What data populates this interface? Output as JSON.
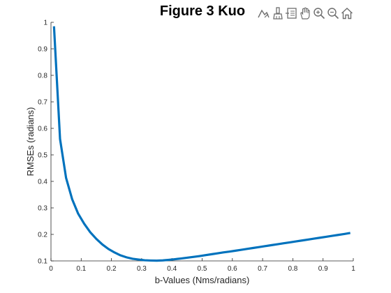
{
  "toolbar": {
    "icons": [
      "export-icon",
      "brush-icon",
      "data-tips-icon",
      "pan-icon",
      "zoom-in-icon",
      "zoom-out-icon",
      "home-icon"
    ]
  },
  "chart_data": {
    "type": "line",
    "title": "Figure 3 Kuo",
    "xlabel": "b-Values (Nms/radians)",
    "ylabel": "RMSEs (radians)",
    "xlim": [
      0,
      1
    ],
    "ylim": [
      0.1,
      1
    ],
    "grid": false,
    "box": false,
    "xticks": [
      "0",
      "0.1",
      "0.2",
      "0.3",
      "0.4",
      "0.5",
      "0.6",
      "0.7",
      "0.8",
      "0.9",
      "1"
    ],
    "yticks": [
      "0.1",
      "0.2",
      "0.3",
      "0.4",
      "0.5",
      "0.6",
      "0.7",
      "0.8",
      "0.9",
      "1"
    ],
    "series": [
      {
        "color": "#0072bd",
        "x": [
          0.01,
          0.03,
          0.05,
          0.07,
          0.09,
          0.11,
          0.13,
          0.15,
          0.17,
          0.19,
          0.21,
          0.23,
          0.25,
          0.27,
          0.29,
          0.31,
          0.33,
          0.35,
          0.37,
          0.39,
          0.41,
          0.43,
          0.45,
          0.47,
          0.49,
          0.51,
          0.53,
          0.55,
          0.57,
          0.59,
          0.61,
          0.63,
          0.65,
          0.67,
          0.69,
          0.71,
          0.73,
          0.75,
          0.77,
          0.79,
          0.81,
          0.83,
          0.85,
          0.87,
          0.89,
          0.91,
          0.93,
          0.95,
          0.97,
          0.99
        ],
        "y": [
          0.985,
          0.56,
          0.413,
          0.333,
          0.278,
          0.24,
          0.208,
          0.183,
          0.162,
          0.145,
          0.132,
          0.121,
          0.1135,
          0.108,
          0.105,
          0.1025,
          0.1015,
          0.101,
          0.102,
          0.104,
          0.1065,
          0.109,
          0.112,
          0.115,
          0.118,
          0.1215,
          0.125,
          0.1285,
          0.132,
          0.135,
          0.1385,
          0.142,
          0.1455,
          0.149,
          0.1525,
          0.156,
          0.1595,
          0.163,
          0.1665,
          0.17,
          0.1735,
          0.177,
          0.1805,
          0.184,
          0.1875,
          0.191,
          0.1945,
          0.198,
          0.2015,
          0.2055
        ]
      }
    ]
  }
}
